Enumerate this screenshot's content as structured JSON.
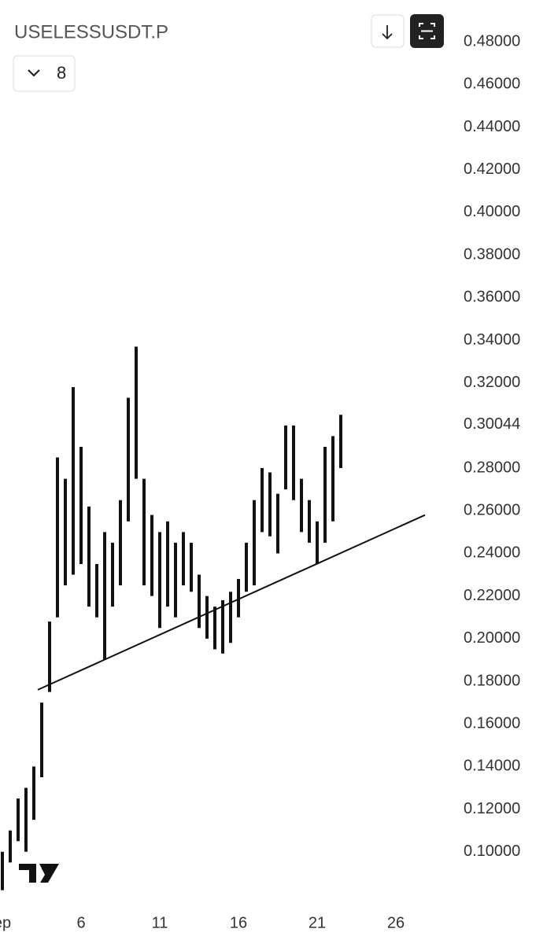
{
  "header": {
    "symbol": "USELESSUSDT.P",
    "interval_button": "8"
  },
  "chart_data": {
    "type": "ohlc",
    "color": "#111111",
    "x": [
      1,
      1.5,
      2,
      2.5,
      3,
      3.5,
      4,
      4.5,
      5,
      5.5,
      6,
      6.5,
      7,
      7.5,
      8,
      8.5,
      9,
      9.5,
      10,
      10.5,
      11,
      11.5,
      12,
      12.5,
      13,
      13.5,
      14,
      14.5,
      15,
      15.5,
      16,
      16.5,
      17,
      17.5,
      18,
      18.5,
      19,
      19.5,
      20,
      20.5,
      21,
      21.5,
      22,
      22.5
    ],
    "series": [
      {
        "low": [
          0.082,
          0.095,
          0.105,
          0.1,
          0.115,
          0.135,
          0.175,
          0.21,
          0.225,
          0.23,
          0.235,
          0.215,
          0.21,
          0.19,
          0.215,
          0.225,
          0.255,
          0.275,
          0.225,
          0.22,
          0.205,
          0.215,
          0.21,
          0.225,
          0.222,
          0.205,
          0.2,
          0.195,
          0.193,
          0.198,
          0.21,
          0.222,
          0.225,
          0.25,
          0.248,
          0.24,
          0.27,
          0.265,
          0.25,
          0.245,
          0.235,
          0.245,
          0.255,
          0.28
        ],
        "high": [
          0.1,
          0.11,
          0.125,
          0.13,
          0.14,
          0.17,
          0.208,
          0.285,
          0.275,
          0.318,
          0.29,
          0.262,
          0.235,
          0.25,
          0.245,
          0.265,
          0.313,
          0.337,
          0.275,
          0.258,
          0.25,
          0.255,
          0.245,
          0.25,
          0.245,
          0.23,
          0.22,
          0.215,
          0.218,
          0.222,
          0.228,
          0.245,
          0.265,
          0.28,
          0.278,
          0.268,
          0.3,
          0.3,
          0.275,
          0.265,
          0.255,
          0.29,
          0.295,
          0.305
        ]
      }
    ],
    "xlim": [
      0.85,
      29.35
    ],
    "xticks": [
      {
        "value": 1,
        "label": "ep"
      },
      6,
      11,
      16,
      21,
      26
    ],
    "ylim": [
      0.0752,
      0.4996
    ],
    "yticks": [
      {
        "value": 0.48,
        "label": "0.48000"
      },
      {
        "value": 0.46,
        "label": "0.46000"
      },
      {
        "value": 0.44,
        "label": "0.44000"
      },
      {
        "value": 0.42,
        "label": "0.42000"
      },
      {
        "value": 0.4,
        "label": "0.40000"
      },
      {
        "value": 0.38,
        "label": "0.38000"
      },
      {
        "value": 0.36,
        "label": "0.36000"
      },
      {
        "value": 0.34,
        "label": "0.34000"
      },
      {
        "value": 0.32,
        "label": "0.32000"
      },
      {
        "value": 0.28,
        "label": "0.28000"
      },
      {
        "value": 0.26,
        "label": "0.26000"
      },
      {
        "value": 0.24,
        "label": "0.24000"
      },
      {
        "value": 0.22,
        "label": "0.22000"
      },
      {
        "value": 0.2,
        "label": "0.20000"
      },
      {
        "value": 0.18,
        "label": "0.18000"
      },
      {
        "value": 0.16,
        "label": "0.16000"
      },
      {
        "value": 0.14,
        "label": "0.14000"
      },
      {
        "value": 0.12,
        "label": "0.12000"
      },
      {
        "value": 0.1,
        "label": "0.10000"
      }
    ],
    "current_price": 0.30044,
    "trendline": {
      "x": [
        3.25,
        27.85
      ],
      "y": [
        0.176,
        0.258
      ]
    }
  }
}
